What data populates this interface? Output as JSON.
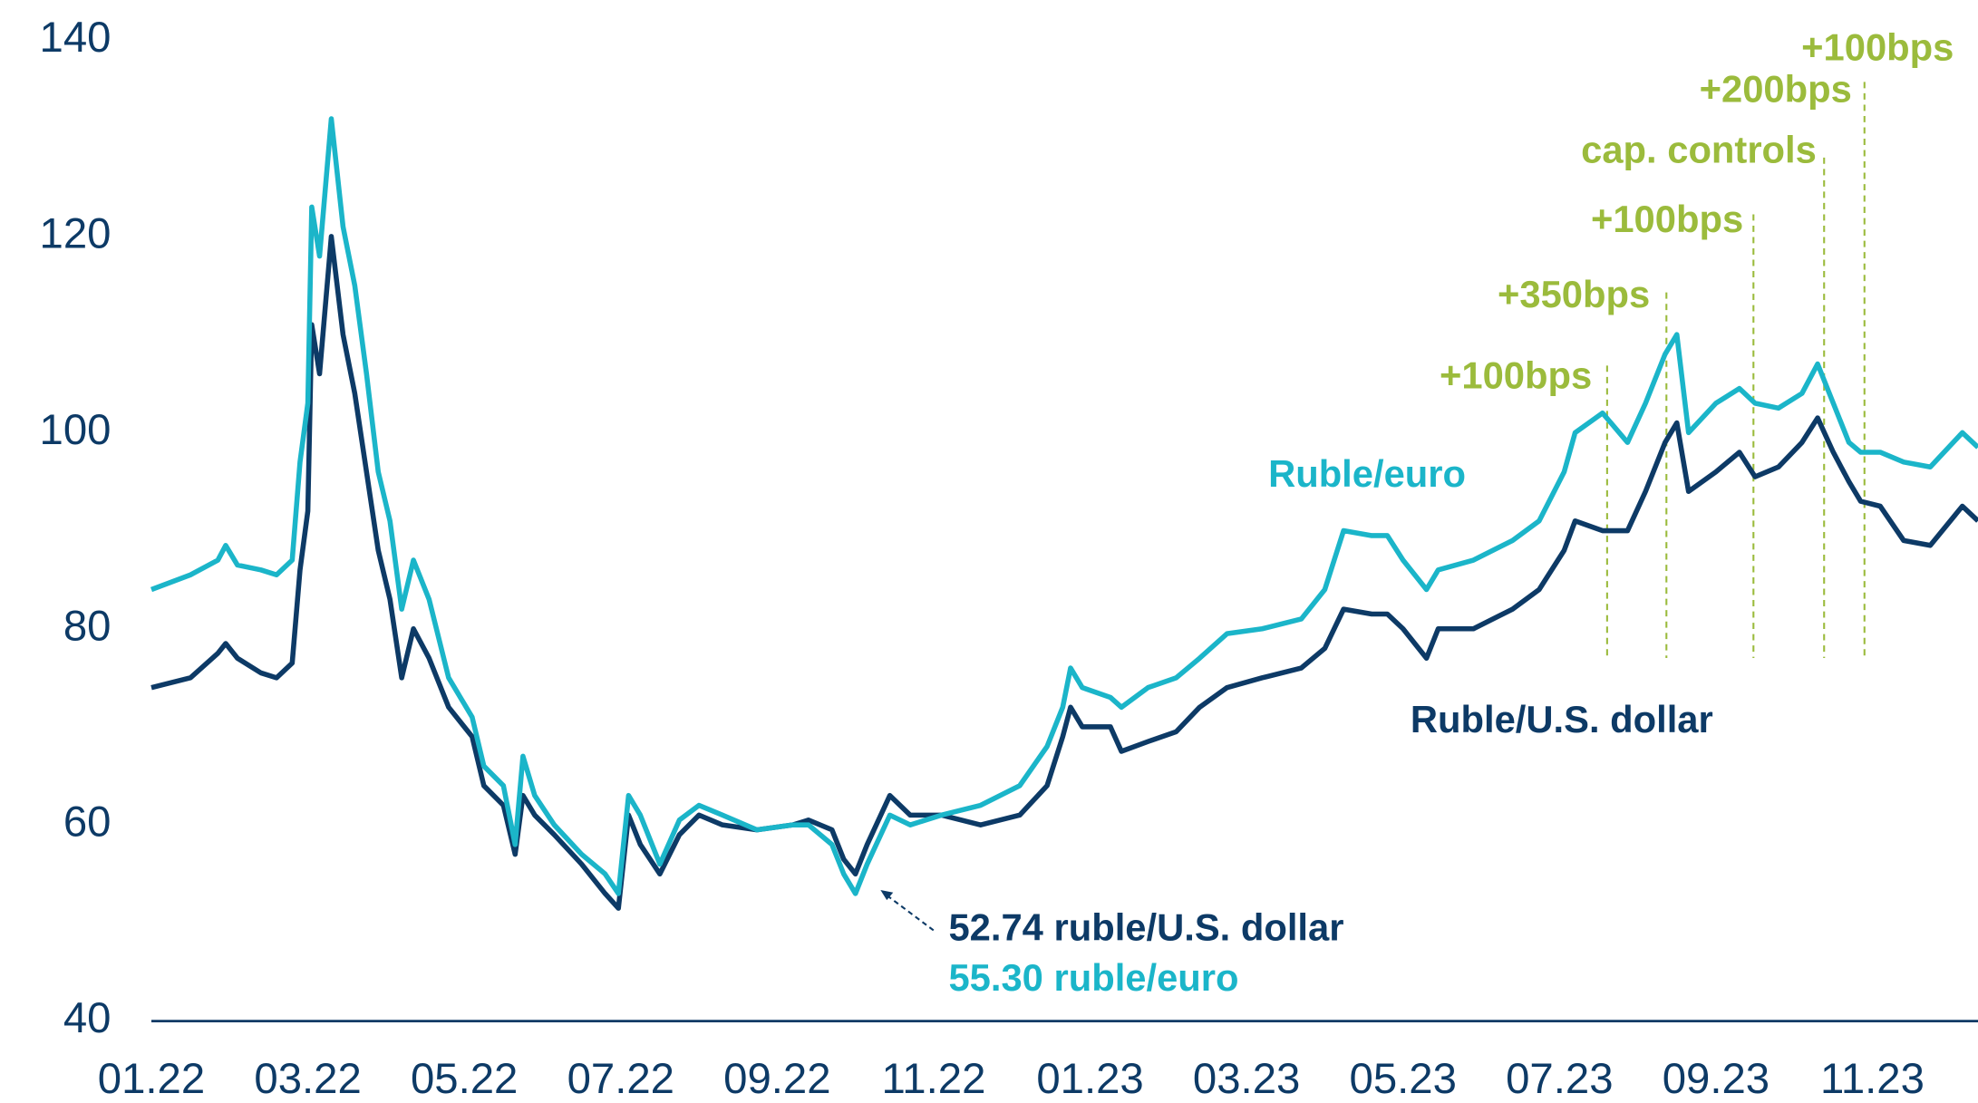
{
  "chart_data": {
    "type": "line",
    "x": [
      0,
      0.5,
      0.85,
      0.95,
      1.1,
      1.4,
      1.6,
      1.8,
      1.9,
      2.0,
      2.05,
      2.15,
      2.3,
      2.45,
      2.6,
      2.75,
      2.9,
      3.05,
      3.2,
      3.35,
      3.55,
      3.8,
      4.1,
      4.25,
      4.5,
      4.65,
      4.75,
      4.9,
      5.15,
      5.5,
      5.8,
      5.97,
      6.1,
      6.25,
      6.5,
      6.75,
      7.0,
      7.3,
      7.74,
      8.2,
      8.4,
      8.7,
      8.85,
      9.0,
      9.15,
      9.44,
      9.7,
      10.1,
      10.6,
      11.1,
      11.45,
      11.65,
      11.75,
      11.9,
      12.26,
      12.4,
      12.74,
      13.1,
      13.4,
      13.75,
      14.2,
      14.7,
      15.0,
      15.24,
      15.6,
      15.8,
      16.0,
      16.3,
      16.45,
      16.9,
      17.4,
      17.74,
      18.06,
      18.2,
      18.55,
      18.87,
      19.1,
      19.35,
      19.5,
      19.65,
      20.0,
      20.3,
      20.5,
      20.8,
      21.1,
      21.3,
      21.5,
      21.7,
      21.85,
      22.1,
      22.4,
      22.74,
      23.15,
      23.35
    ],
    "series": [
      {
        "name": "Ruble/U.S. dollar",
        "color": "#0d3a66",
        "values": [
          74,
          75,
          77.5,
          78.5,
          77,
          75.5,
          75,
          76.5,
          86,
          92,
          111,
          106,
          120,
          110,
          104,
          96,
          88,
          83,
          75,
          80,
          77,
          72,
          69,
          64,
          62,
          57,
          63,
          61,
          59,
          56,
          53,
          51.5,
          61,
          58,
          55,
          59,
          61,
          60,
          59.5,
          60,
          60.5,
          59.5,
          56.5,
          55,
          58,
          63,
          61,
          61,
          60,
          61,
          64,
          69,
          72,
          70,
          70,
          67.5,
          68.5,
          69.5,
          72,
          74,
          75,
          76,
          78,
          82,
          81.5,
          81.5,
          80,
          77,
          80,
          80,
          82,
          84,
          88,
          91,
          90,
          90,
          94,
          99,
          101,
          94,
          96,
          98,
          95.5,
          96.5,
          99,
          101.5,
          98,
          95,
          93,
          92.5,
          89,
          88.5,
          92.5,
          91
        ]
      },
      {
        "name": "Ruble/euro",
        "color": "#1bb5c9",
        "values": [
          84,
          85.5,
          87,
          88.5,
          86.5,
          86,
          85.5,
          87,
          97,
          103,
          123,
          118,
          132,
          121,
          115,
          106,
          96,
          91,
          82,
          87,
          83,
          75,
          71,
          66,
          64,
          58,
          67,
          63,
          60,
          57,
          55,
          53,
          63,
          61,
          56,
          60.5,
          62,
          61,
          59.5,
          60,
          60,
          58,
          55,
          53,
          56,
          61,
          60,
          61,
          62,
          64,
          68,
          72,
          76,
          74,
          73,
          72,
          74,
          75,
          77,
          79.5,
          80,
          81,
          84,
          90,
          89.5,
          89.5,
          87,
          84,
          86,
          87,
          89,
          91,
          96,
          100,
          102,
          99,
          103,
          108,
          110,
          100,
          103,
          104.5,
          103,
          102.5,
          104,
          107,
          103,
          99,
          98,
          98,
          97,
          96.5,
          100,
          98.5
        ]
      }
    ],
    "xlim": [
      0,
      23.35
    ],
    "xticks": [
      {
        "value": 0,
        "label": "01.22"
      },
      {
        "value": 2,
        "label": "03.22"
      },
      {
        "value": 4,
        "label": "05.22"
      },
      {
        "value": 6,
        "label": "07.22"
      },
      {
        "value": 8,
        "label": "09.22"
      },
      {
        "value": 10,
        "label": "11.22"
      },
      {
        "value": 12,
        "label": "01.23"
      },
      {
        "value": 14,
        "label": "03.23"
      },
      {
        "value": 16,
        "label": "05.23"
      },
      {
        "value": 18,
        "label": "07.23"
      },
      {
        "value": 20,
        "label": "09.23"
      },
      {
        "value": 22,
        "label": "11.23"
      }
    ],
    "ylim": [
      40,
      140
    ],
    "yticks": [
      40,
      60,
      80,
      100,
      120,
      140
    ],
    "annotations": [
      "+100bps",
      "+350bps",
      "+100bps",
      "cap. controls",
      "+200bps",
      "+100bps",
      "52.74 ruble/U.S. dollar",
      "55.30 ruble/euro"
    ],
    "annotation_color": "#9bbb3c"
  }
}
